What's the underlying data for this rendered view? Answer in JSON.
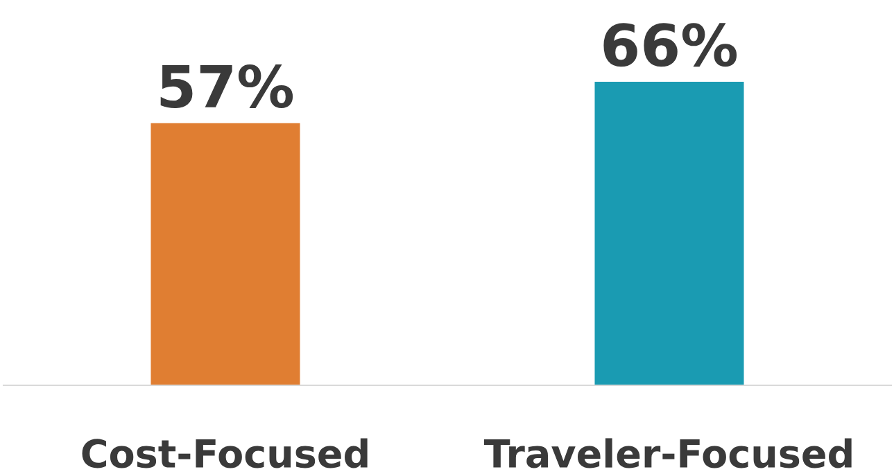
{
  "chart_data": {
    "type": "bar",
    "categories": [
      "Cost-Focused",
      "Traveler-Focused"
    ],
    "values": [
      57,
      66
    ],
    "colors": [
      "#e07e32",
      "#1a9bb2"
    ],
    "value_labels": [
      "57%",
      "66%"
    ],
    "grid": false,
    "legend": false
  }
}
